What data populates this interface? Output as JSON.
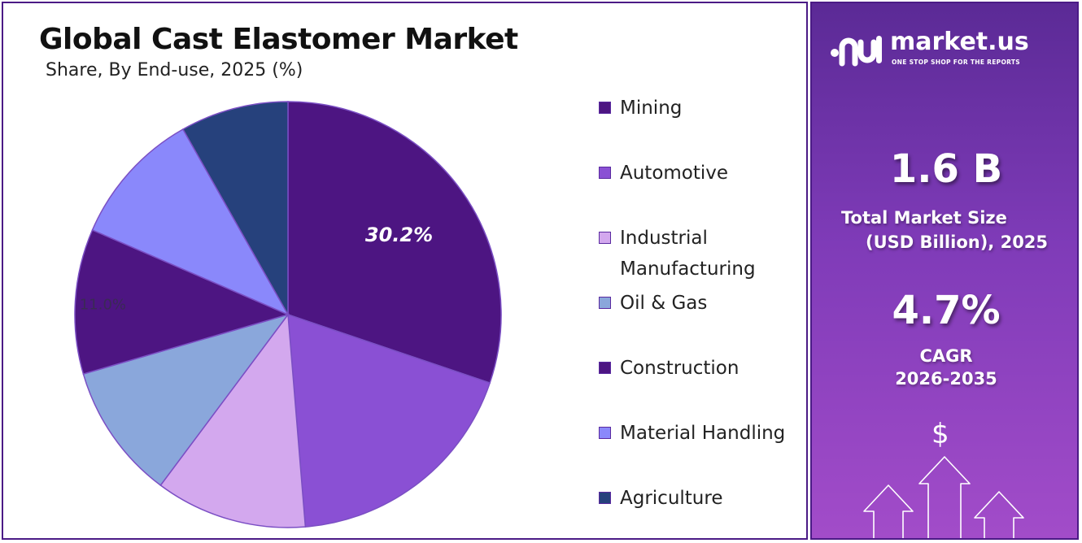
{
  "title": "Global Cast Elastomer Market",
  "subtitle": "Share, By End-use, 2025 (%)",
  "chart_data": {
    "type": "pie",
    "categories": [
      "Mining",
      "Automotive",
      "Industrial Manufacturing",
      "Oil & Gas",
      "Construction",
      "Material Handling",
      "Agriculture"
    ],
    "values": [
      30.2,
      18.5,
      11.5,
      10.3,
      11.0,
      10.3,
      8.2
    ],
    "labels": [
      "30.2%",
      "",
      "",
      "",
      "11.0%",
      "",
      ""
    ],
    "colors": [
      "#4d1582",
      "#8a50d4",
      "#d3a8ee",
      "#8aa7db",
      "#4d1582",
      "#8a88fb",
      "#26417c"
    ],
    "legend_position": "right",
    "start_angle_deg": 0,
    "direction": "clockwise"
  },
  "legend": {
    "items": [
      {
        "label": "Mining",
        "color": "#4d1582"
      },
      {
        "label": "Automotive",
        "color": "#8a50d4"
      },
      {
        "label": "Industrial Manufacturing",
        "color": "#d3a8ee"
      },
      {
        "label": "Oil & Gas",
        "color": "#8aa7db"
      },
      {
        "label": "Construction",
        "color": "#4d1582"
      },
      {
        "label": "Material Handling",
        "color": "#8a88fb"
      },
      {
        "label": "Agriculture",
        "color": "#26417c"
      }
    ]
  },
  "brand": {
    "name": "market.us",
    "tagline": "ONE STOP SHOP FOR THE REPORTS"
  },
  "stats": {
    "market_size": "1.6 B",
    "market_size_label_1": "Total Market Size",
    "market_size_label_2": "(USD Billion), 2025",
    "cagr": "4.7%",
    "cagr_label_1": "CAGR",
    "cagr_label_2": "2026-2035"
  },
  "icons": {
    "logo": "market-us-logo-icon",
    "growth": "growth-arrows-icon",
    "currency": "$"
  },
  "colors": {
    "accent_dark": "#4b1b86",
    "panel_gradient_top": "#5b2a96",
    "panel_gradient_bottom": "#a24cc9"
  }
}
